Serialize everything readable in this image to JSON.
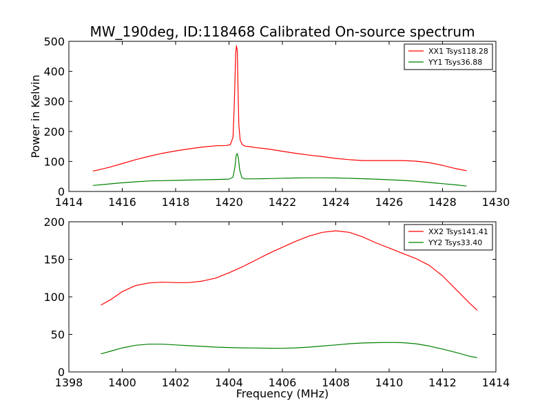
{
  "chart_data": [
    {
      "type": "line",
      "title": "MW_190deg, ID:118468 Calibrated On-source spectrum",
      "xlabel": "",
      "ylabel": "Power in Kelvin",
      "xlim": [
        1414,
        1430
      ],
      "ylim": [
        0,
        500
      ],
      "xticks": [
        1414,
        1416,
        1418,
        1420,
        1422,
        1424,
        1426,
        1428,
        1430
      ],
      "yticks": [
        0,
        100,
        200,
        300,
        400,
        500
      ],
      "legend": "top-right",
      "grid": false,
      "series": [
        {
          "name": "XX1 Tsys118.28",
          "color": "#ff0000",
          "x": [
            1414.9,
            1415.5,
            1416.0,
            1416.5,
            1417.0,
            1417.5,
            1418.0,
            1418.5,
            1419.0,
            1419.5,
            1419.9,
            1420.05,
            1420.15,
            1420.2,
            1420.25,
            1420.28,
            1420.31,
            1420.34,
            1420.37,
            1420.42,
            1420.5,
            1420.6,
            1420.8,
            1421.0,
            1421.5,
            1422.0,
            1422.5,
            1423.0,
            1423.5,
            1424.0,
            1424.5,
            1425.0,
            1425.5,
            1426.0,
            1426.5,
            1427.0,
            1427.5,
            1428.0,
            1428.5,
            1428.9
          ],
          "y": [
            68,
            80,
            93,
            106,
            117,
            127,
            135,
            142,
            148,
            152,
            153,
            156,
            180,
            300,
            460,
            485,
            470,
            330,
            220,
            170,
            156,
            151,
            149,
            146,
            141,
            134,
            127,
            121,
            116,
            110,
            106,
            103,
            103,
            103,
            103,
            101,
            96,
            87,
            76,
            69
          ]
        },
        {
          "name": "YY1 Tsys36.88",
          "color": "#008000",
          "x": [
            1414.9,
            1415.5,
            1416.0,
            1416.5,
            1417.0,
            1417.5,
            1418.0,
            1418.5,
            1419.0,
            1419.5,
            1420.0,
            1420.15,
            1420.22,
            1420.27,
            1420.31,
            1420.35,
            1420.4,
            1420.48,
            1420.6,
            1421.0,
            1421.5,
            1422.0,
            1422.5,
            1423.0,
            1423.5,
            1424.0,
            1424.5,
            1425.0,
            1425.5,
            1426.0,
            1426.5,
            1427.0,
            1427.5,
            1428.0,
            1428.5,
            1428.9
          ],
          "y": [
            20,
            25,
            29,
            32,
            35,
            36,
            37,
            38,
            39,
            40,
            41,
            48,
            80,
            122,
            126,
            112,
            72,
            46,
            42,
            42,
            43,
            44,
            45,
            45.5,
            45.5,
            45,
            44,
            42.5,
            41,
            39,
            37,
            34,
            30,
            26,
            22,
            18
          ]
        }
      ]
    },
    {
      "type": "line",
      "title": "",
      "xlabel": "Frequency (MHz)",
      "ylabel": "",
      "xlim": [
        1398,
        1414
      ],
      "ylim": [
        0,
        200
      ],
      "xticks": [
        1398,
        1400,
        1402,
        1404,
        1406,
        1408,
        1410,
        1412,
        1414
      ],
      "yticks": [
        0,
        50,
        100,
        150,
        200
      ],
      "legend": "top-right",
      "grid": false,
      "series": [
        {
          "name": "XX2 Tsys141.41",
          "color": "#ff0000",
          "x": [
            1399.2,
            1399.6,
            1400.0,
            1400.5,
            1401.0,
            1401.5,
            1402.0,
            1402.5,
            1403.0,
            1403.5,
            1404.0,
            1404.5,
            1405.0,
            1405.5,
            1406.0,
            1406.5,
            1407.0,
            1407.5,
            1408.0,
            1408.5,
            1409.0,
            1409.5,
            1410.0,
            1410.5,
            1411.0,
            1411.5,
            1412.0,
            1412.5,
            1413.0,
            1413.3
          ],
          "y": [
            89,
            97,
            107,
            115,
            118.5,
            119.5,
            119,
            119,
            121,
            125,
            132,
            140,
            149,
            158,
            166,
            174,
            181,
            186,
            188,
            186,
            180,
            172,
            165,
            158,
            151,
            142,
            128,
            110,
            92,
            82
          ]
        },
        {
          "name": "YY2 Tsys33.40",
          "color": "#008000",
          "x": [
            1399.2,
            1399.6,
            1400.0,
            1400.5,
            1401.0,
            1401.5,
            1402.0,
            1402.5,
            1403.0,
            1403.5,
            1404.0,
            1404.5,
            1405.0,
            1405.5,
            1406.0,
            1406.5,
            1407.0,
            1407.5,
            1408.0,
            1408.5,
            1409.0,
            1409.5,
            1410.0,
            1410.5,
            1411.0,
            1411.5,
            1412.0,
            1412.5,
            1413.0,
            1413.3
          ],
          "y": [
            24,
            28,
            32,
            35.5,
            37,
            37,
            36,
            35,
            34,
            33,
            32.5,
            32,
            31.8,
            31.6,
            31.5,
            32,
            33,
            34.5,
            36,
            37.5,
            38.5,
            39,
            39.3,
            39,
            37.5,
            34.5,
            30.5,
            26,
            21,
            19
          ]
        }
      ]
    }
  ]
}
